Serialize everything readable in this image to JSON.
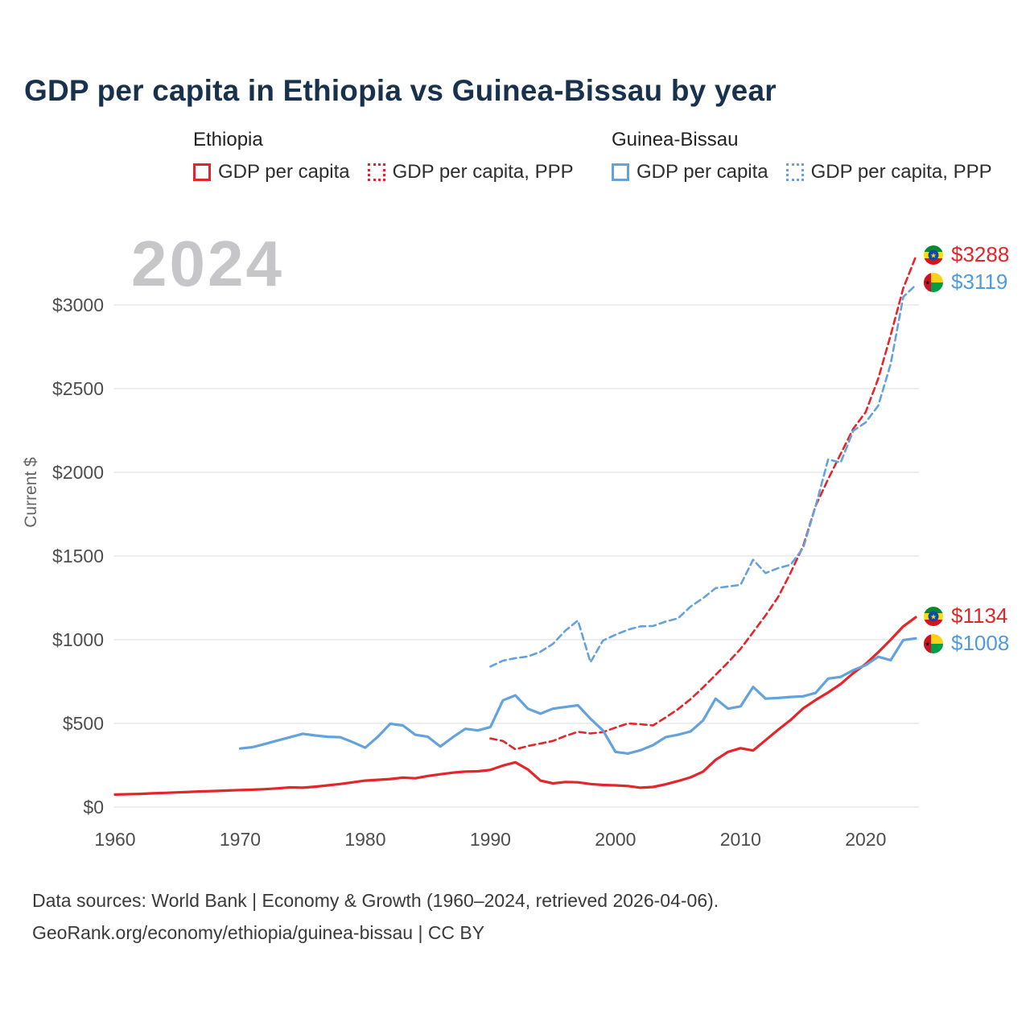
{
  "page": {
    "title": "GDP per capita in Ethiopia vs Guinea-Bissau by year"
  },
  "legend": {
    "groups": [
      {
        "name": "Ethiopia",
        "color": "#e3262b",
        "items": [
          {
            "label": "GDP per capita",
            "style": "solid"
          },
          {
            "label": "GDP per capita, PPP",
            "style": "dotted"
          }
        ]
      },
      {
        "name": "Guinea-Bissau",
        "color": "#64a2dc",
        "items": [
          {
            "label": "GDP per capita",
            "style": "solid"
          },
          {
            "label": "GDP per capita, PPP",
            "style": "dotted"
          }
        ]
      }
    ]
  },
  "footer": {
    "line1": "Data sources: World Bank | Economy & Growth (1960–2024, retrieved 2026-04-06).",
    "line2": "GeoRank.org/economy/ethiopia/guinea-bissau | CC BY"
  },
  "chart_data": {
    "type": "line",
    "title": "GDP per capita in Ethiopia vs Guinea-Bissau by year",
    "xlabel": "",
    "ylabel": "Current $",
    "watermark": "2024",
    "grid": true,
    "legend_position": "top",
    "x_range": [
      1960,
      2024
    ],
    "ylim": [
      0,
      3450
    ],
    "colors": {
      "ethiopia": "#e3262b",
      "guinea_bissau": "#64a2dc",
      "grid": "#e9e9e9",
      "axis_text": "#4d4d4d",
      "title": "#18324e",
      "watermark": "#c6c6c9"
    },
    "y_ticks": [
      {
        "v": 0,
        "label": "$0"
      },
      {
        "v": 500,
        "label": "$500"
      },
      {
        "v": 1000,
        "label": "$1000"
      },
      {
        "v": 1500,
        "label": "$1500"
      },
      {
        "v": 2000,
        "label": "$2000"
      },
      {
        "v": 2500,
        "label": "$2500"
      },
      {
        "v": 3000,
        "label": "$3000"
      }
    ],
    "x_ticks": [
      {
        "v": 1960,
        "label": "1960"
      },
      {
        "v": 1970,
        "label": "1970"
      },
      {
        "v": 1980,
        "label": "1980"
      },
      {
        "v": 1990,
        "label": "1990"
      },
      {
        "v": 2000,
        "label": "2000"
      },
      {
        "v": 2010,
        "label": "2010"
      },
      {
        "v": 2020,
        "label": "2020"
      }
    ],
    "series": [
      {
        "name": "Ethiopia GDP per capita",
        "country": "Ethiopia",
        "color": "#e3262b",
        "dashed": false,
        "start_year": 1960,
        "values": [
          75,
          77,
          79,
          82,
          85,
          88,
          91,
          94,
          96,
          99,
          102,
          104,
          107,
          112,
          118,
          116,
          122,
          130,
          138,
          148,
          158,
          163,
          168,
          176,
          172,
          186,
          196,
          206,
          212,
          214,
          222,
          248,
          268,
          225,
          158,
          142,
          150,
          148,
          138,
          132,
          130,
          126,
          116,
          120,
          136,
          156,
          178,
          212,
          282,
          330,
          352,
          338,
          400,
          462,
          520,
          590,
          640,
          685,
          735,
          800,
          855,
          925,
          1000,
          1080,
          1134
        ]
      },
      {
        "name": "Ethiopia GDP per capita, PPP",
        "country": "Ethiopia",
        "color": "#e3262b",
        "dashed": true,
        "start_year": 1990,
        "values": [
          410,
          395,
          345,
          365,
          380,
          395,
          425,
          450,
          440,
          448,
          475,
          500,
          495,
          488,
          535,
          585,
          645,
          715,
          790,
          865,
          945,
          1045,
          1145,
          1255,
          1400,
          1560,
          1800,
          1960,
          2110,
          2260,
          2360,
          2560,
          2820,
          3100,
          3288
        ]
      },
      {
        "name": "Guinea-Bissau GDP per capita",
        "country": "Guinea-Bissau",
        "color": "#64a2dc",
        "dashed": false,
        "start_year": 1970,
        "values": [
          350,
          358,
          378,
          398,
          418,
          438,
          428,
          420,
          418,
          388,
          355,
          420,
          498,
          488,
          432,
          420,
          362,
          418,
          468,
          458,
          478,
          638,
          668,
          588,
          558,
          588,
          598,
          608,
          528,
          458,
          330,
          320,
          340,
          370,
          418,
          432,
          452,
          518,
          648,
          588,
          602,
          718,
          648,
          652,
          658,
          662,
          682,
          768,
          778,
          818,
          848,
          898,
          878,
          998,
          1008
        ]
      },
      {
        "name": "Guinea-Bissau GDP per capita, PPP",
        "country": "Guinea-Bissau",
        "color": "#64a2dc",
        "dashed": true,
        "start_year": 1990,
        "values": [
          840,
          875,
          890,
          900,
          928,
          975,
          1055,
          1115,
          865,
          995,
          1030,
          1060,
          1080,
          1082,
          1108,
          1128,
          1198,
          1248,
          1308,
          1318,
          1328,
          1478,
          1398,
          1428,
          1448,
          1548,
          1798,
          2078,
          2058,
          2248,
          2298,
          2398,
          2648,
          3048,
          3119
        ]
      }
    ],
    "end_labels": [
      {
        "series": "Ethiopia GDP per capita, PPP",
        "flag": "ethiopia",
        "value": "$3288",
        "color": "#e3262b"
      },
      {
        "series": "Guinea-Bissau GDP per capita, PPP",
        "flag": "guinea-bissau",
        "value": "$3119",
        "color": "#4f9bdb"
      },
      {
        "series": "Ethiopia GDP per capita",
        "flag": "ethiopia",
        "value": "$1134",
        "color": "#e3262b"
      },
      {
        "series": "Guinea-Bissau GDP per capita",
        "flag": "guinea-bissau",
        "value": "$1008",
        "color": "#4f9bdb"
      }
    ]
  }
}
